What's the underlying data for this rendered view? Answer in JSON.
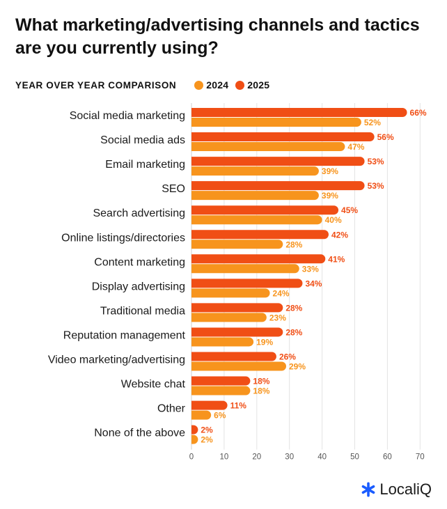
{
  "header": {
    "title": "What marketing/advertising channels and tactics are you currently using?",
    "subtitle": "YEAR OVER YEAR COMPARISON"
  },
  "colors": {
    "y2024": "#F7941D",
    "y2025": "#F04E15",
    "grid": "#E3E3E3",
    "axis": "#555555"
  },
  "logo": {
    "text": "LocaliQ",
    "icon": "asterisk-icon",
    "icon_color": "#1A5CFF"
  },
  "chart_data": {
    "type": "bar",
    "orientation": "horizontal",
    "categories": [
      "Social media marketing",
      "Social media ads",
      "Email marketing",
      "SEO",
      "Search advertising",
      "Online listings/directories",
      "Content marketing",
      "Display advertising",
      "Traditional media",
      "Reputation management",
      "Video marketing/advertising",
      "Website chat",
      "Other",
      "None of the above"
    ],
    "series": [
      {
        "name": "2025",
        "color": "#F04E15",
        "values": [
          66,
          56,
          53,
          53,
          45,
          42,
          41,
          34,
          28,
          28,
          26,
          18,
          11,
          2
        ]
      },
      {
        "name": "2024",
        "color": "#F7941D",
        "values": [
          52,
          47,
          39,
          39,
          40,
          28,
          33,
          24,
          23,
          19,
          29,
          18,
          6,
          2
        ]
      }
    ],
    "legend_order": [
      "2024",
      "2025"
    ],
    "xlim": [
      0,
      70
    ],
    "xticks": [
      "0",
      "10",
      "20",
      "30",
      "40",
      "50",
      "60",
      "70"
    ],
    "value_suffix": "%",
    "legend_position": "top-left",
    "grid": true
  }
}
